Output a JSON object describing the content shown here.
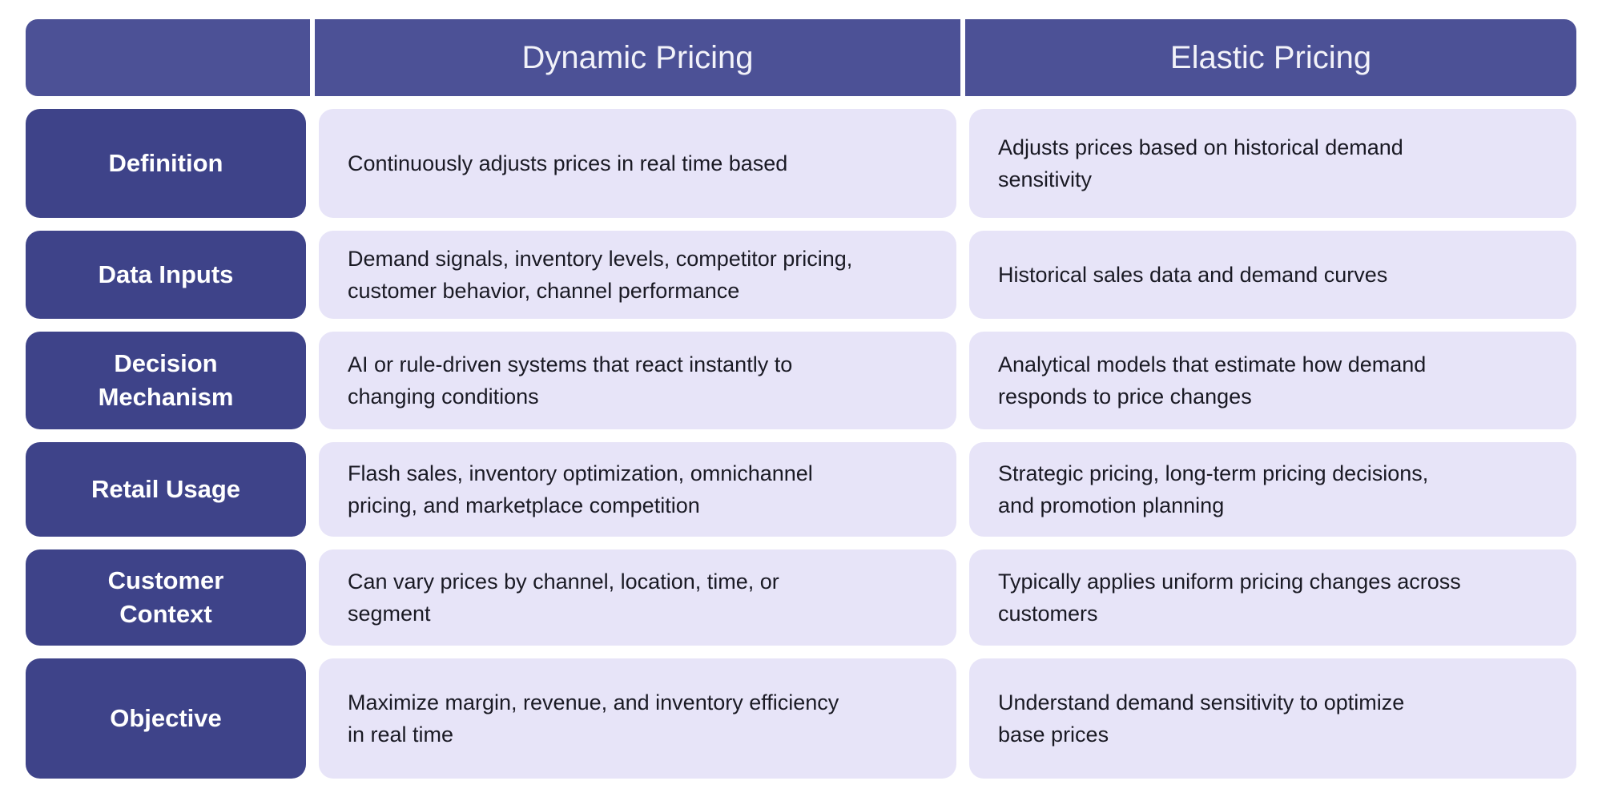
{
  "colors": {
    "background": "#FFFFFF",
    "header_bg": "#4C5196",
    "row_label_bg": "#3E4389",
    "cell_bg": "#E7E4F8",
    "header_text": "#F2F2F9",
    "row_label_text": "#FFFFFF",
    "body_text": "#1A1A24"
  },
  "table": {
    "column_headers": [
      "Dynamic Pricing",
      "Elastic Pricing"
    ],
    "rows": [
      {
        "label": "Definition",
        "dynamic": "Continuously adjusts prices in real time based",
        "elastic": "Adjusts prices based on historical demand\nsensitivity"
      },
      {
        "label": "Data Inputs",
        "dynamic": "Demand signals, inventory levels, competitor pricing,\ncustomer behavior, channel performance",
        "elastic": "Historical sales data and demand curves"
      },
      {
        "label": "Decision\nMechanism",
        "dynamic": "AI or rule-driven systems that react instantly to\nchanging conditions",
        "elastic": "Analytical models that estimate how demand\nresponds to price changes"
      },
      {
        "label": "Retail Usage",
        "dynamic": "Flash sales, inventory optimization, omnichannel\npricing, and marketplace competition",
        "elastic": "Strategic pricing, long-term pricing decisions,\nand promotion planning"
      },
      {
        "label": "Customer\nContext",
        "dynamic": "Can vary prices by channel, location, time, or\nsegment",
        "elastic": "Typically applies uniform pricing changes across\ncustomers"
      },
      {
        "label": "Objective",
        "dynamic": "Maximize margin, revenue, and inventory efficiency\nin real time",
        "elastic": "Understand demand sensitivity to optimize\nbase prices"
      }
    ]
  }
}
